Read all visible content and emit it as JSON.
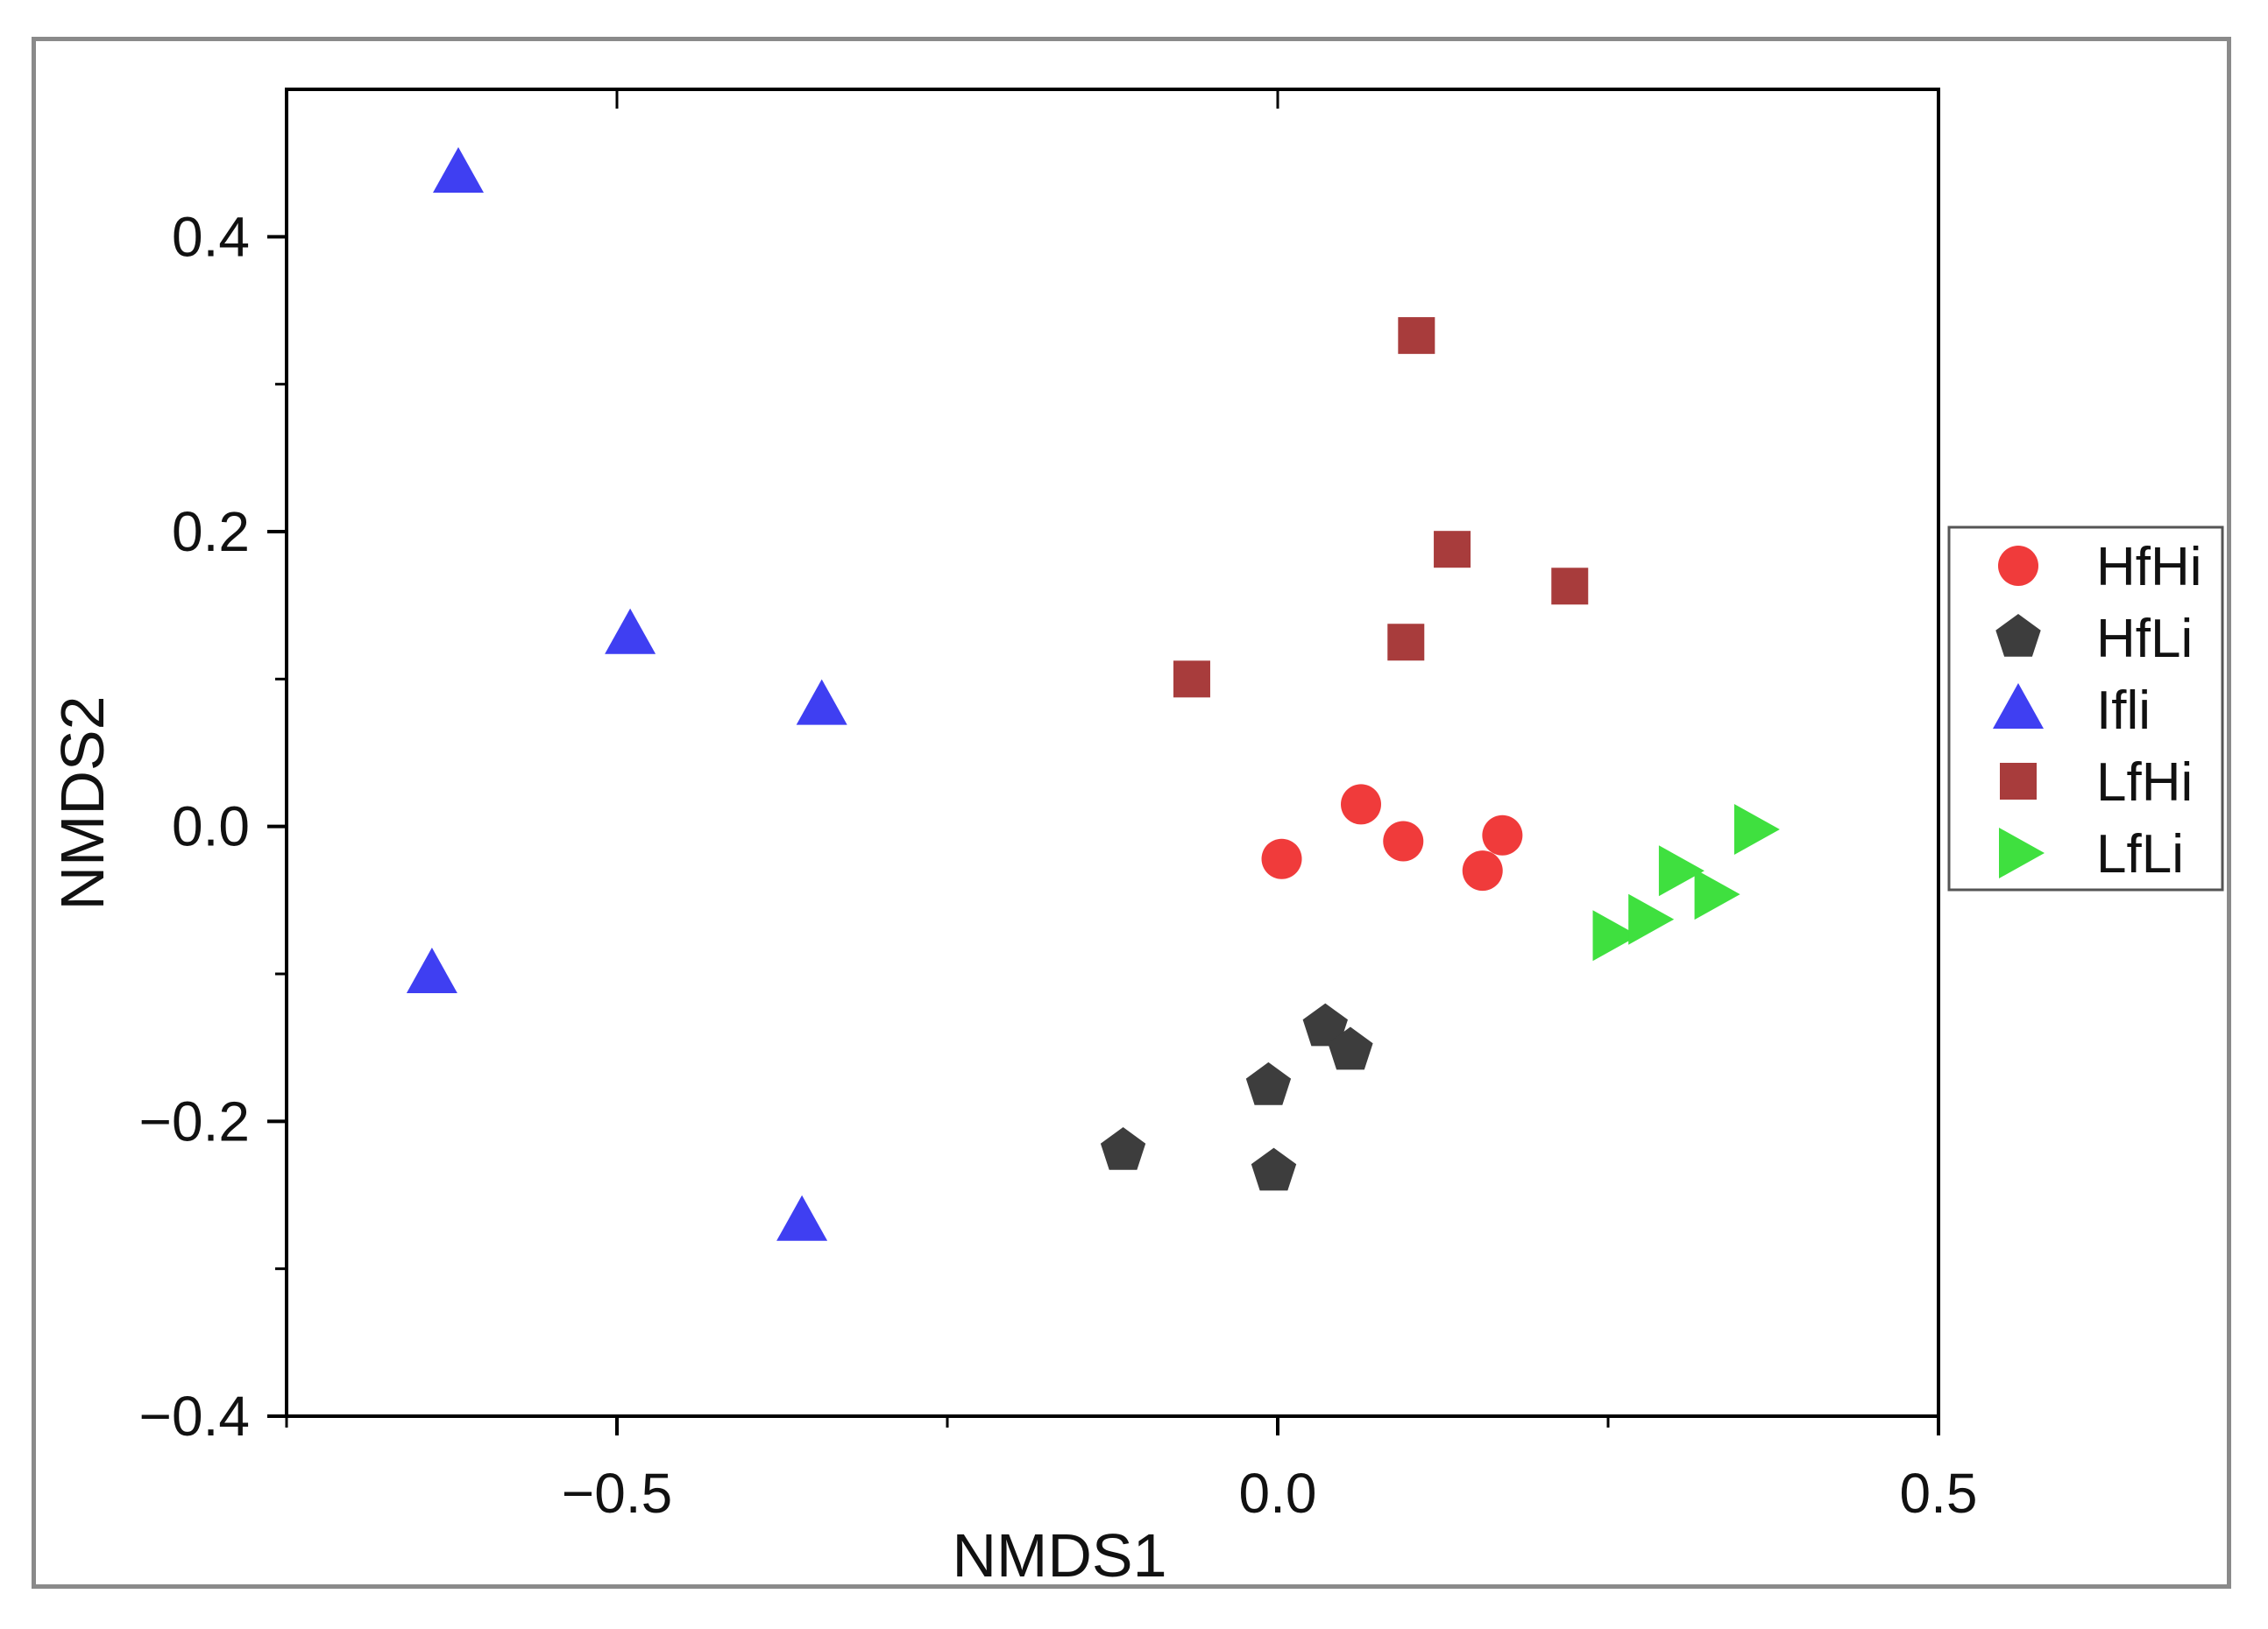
{
  "chart_data": {
    "type": "scatter",
    "title": "",
    "xlabel": "NMDS1",
    "ylabel": "NMDS2",
    "xlim": [
      -0.75,
      0.5
    ],
    "ylim": [
      -0.4,
      0.5
    ],
    "x_ticks": [
      {
        "value": -0.5,
        "label": "−0.5"
      },
      {
        "value": 0.0,
        "label": "0.0"
      },
      {
        "value": 0.5,
        "label": "0.5"
      }
    ],
    "x_minor_ticks": [
      -0.75,
      -0.25,
      0.25
    ],
    "y_ticks": [
      {
        "value": -0.4,
        "label": "−0.4"
      },
      {
        "value": -0.2,
        "label": "−0.2"
      },
      {
        "value": 0.0,
        "label": "0.0"
      },
      {
        "value": 0.2,
        "label": "0.2"
      },
      {
        "value": 0.4,
        "label": "0.4"
      }
    ],
    "y_minor_ticks": [
      -0.3,
      -0.1,
      0.1,
      0.3
    ],
    "grid": false,
    "legend_position": "right-outside",
    "series": [
      {
        "name": "HfHi",
        "marker": "circle",
        "color": "#f03b3b",
        "points": [
          [
            0.003,
            -0.022
          ],
          [
            0.063,
            0.015
          ],
          [
            0.095,
            -0.01
          ],
          [
            0.155,
            -0.03
          ],
          [
            0.17,
            -0.006
          ]
        ]
      },
      {
        "name": "HfLi",
        "marker": "pentagon",
        "color": "#3d3d3d",
        "points": [
          [
            -0.117,
            -0.22
          ],
          [
            -0.007,
            -0.176
          ],
          [
            -0.003,
            -0.234
          ],
          [
            0.036,
            -0.136
          ],
          [
            0.055,
            -0.152
          ]
        ]
      },
      {
        "name": "Ifli",
        "marker": "triangle-up",
        "color": "#3f3ff2",
        "points": [
          [
            -0.62,
            0.443
          ],
          [
            -0.49,
            0.13
          ],
          [
            -0.345,
            0.082
          ],
          [
            -0.64,
            -0.1
          ],
          [
            -0.36,
            -0.268
          ]
        ]
      },
      {
        "name": "LfHi",
        "marker": "square",
        "color": "#a83c3c",
        "points": [
          [
            -0.065,
            0.1
          ],
          [
            0.097,
            0.125
          ],
          [
            0.105,
            0.333
          ],
          [
            0.132,
            0.188
          ],
          [
            0.221,
            0.163
          ]
        ]
      },
      {
        "name": "LfLi",
        "marker": "triangle-right",
        "color": "#3fe03f",
        "points": [
          [
            0.253,
            -0.074
          ],
          [
            0.28,
            -0.063
          ],
          [
            0.303,
            -0.03
          ],
          [
            0.33,
            -0.046
          ],
          [
            0.36,
            -0.002
          ]
        ]
      }
    ]
  }
}
